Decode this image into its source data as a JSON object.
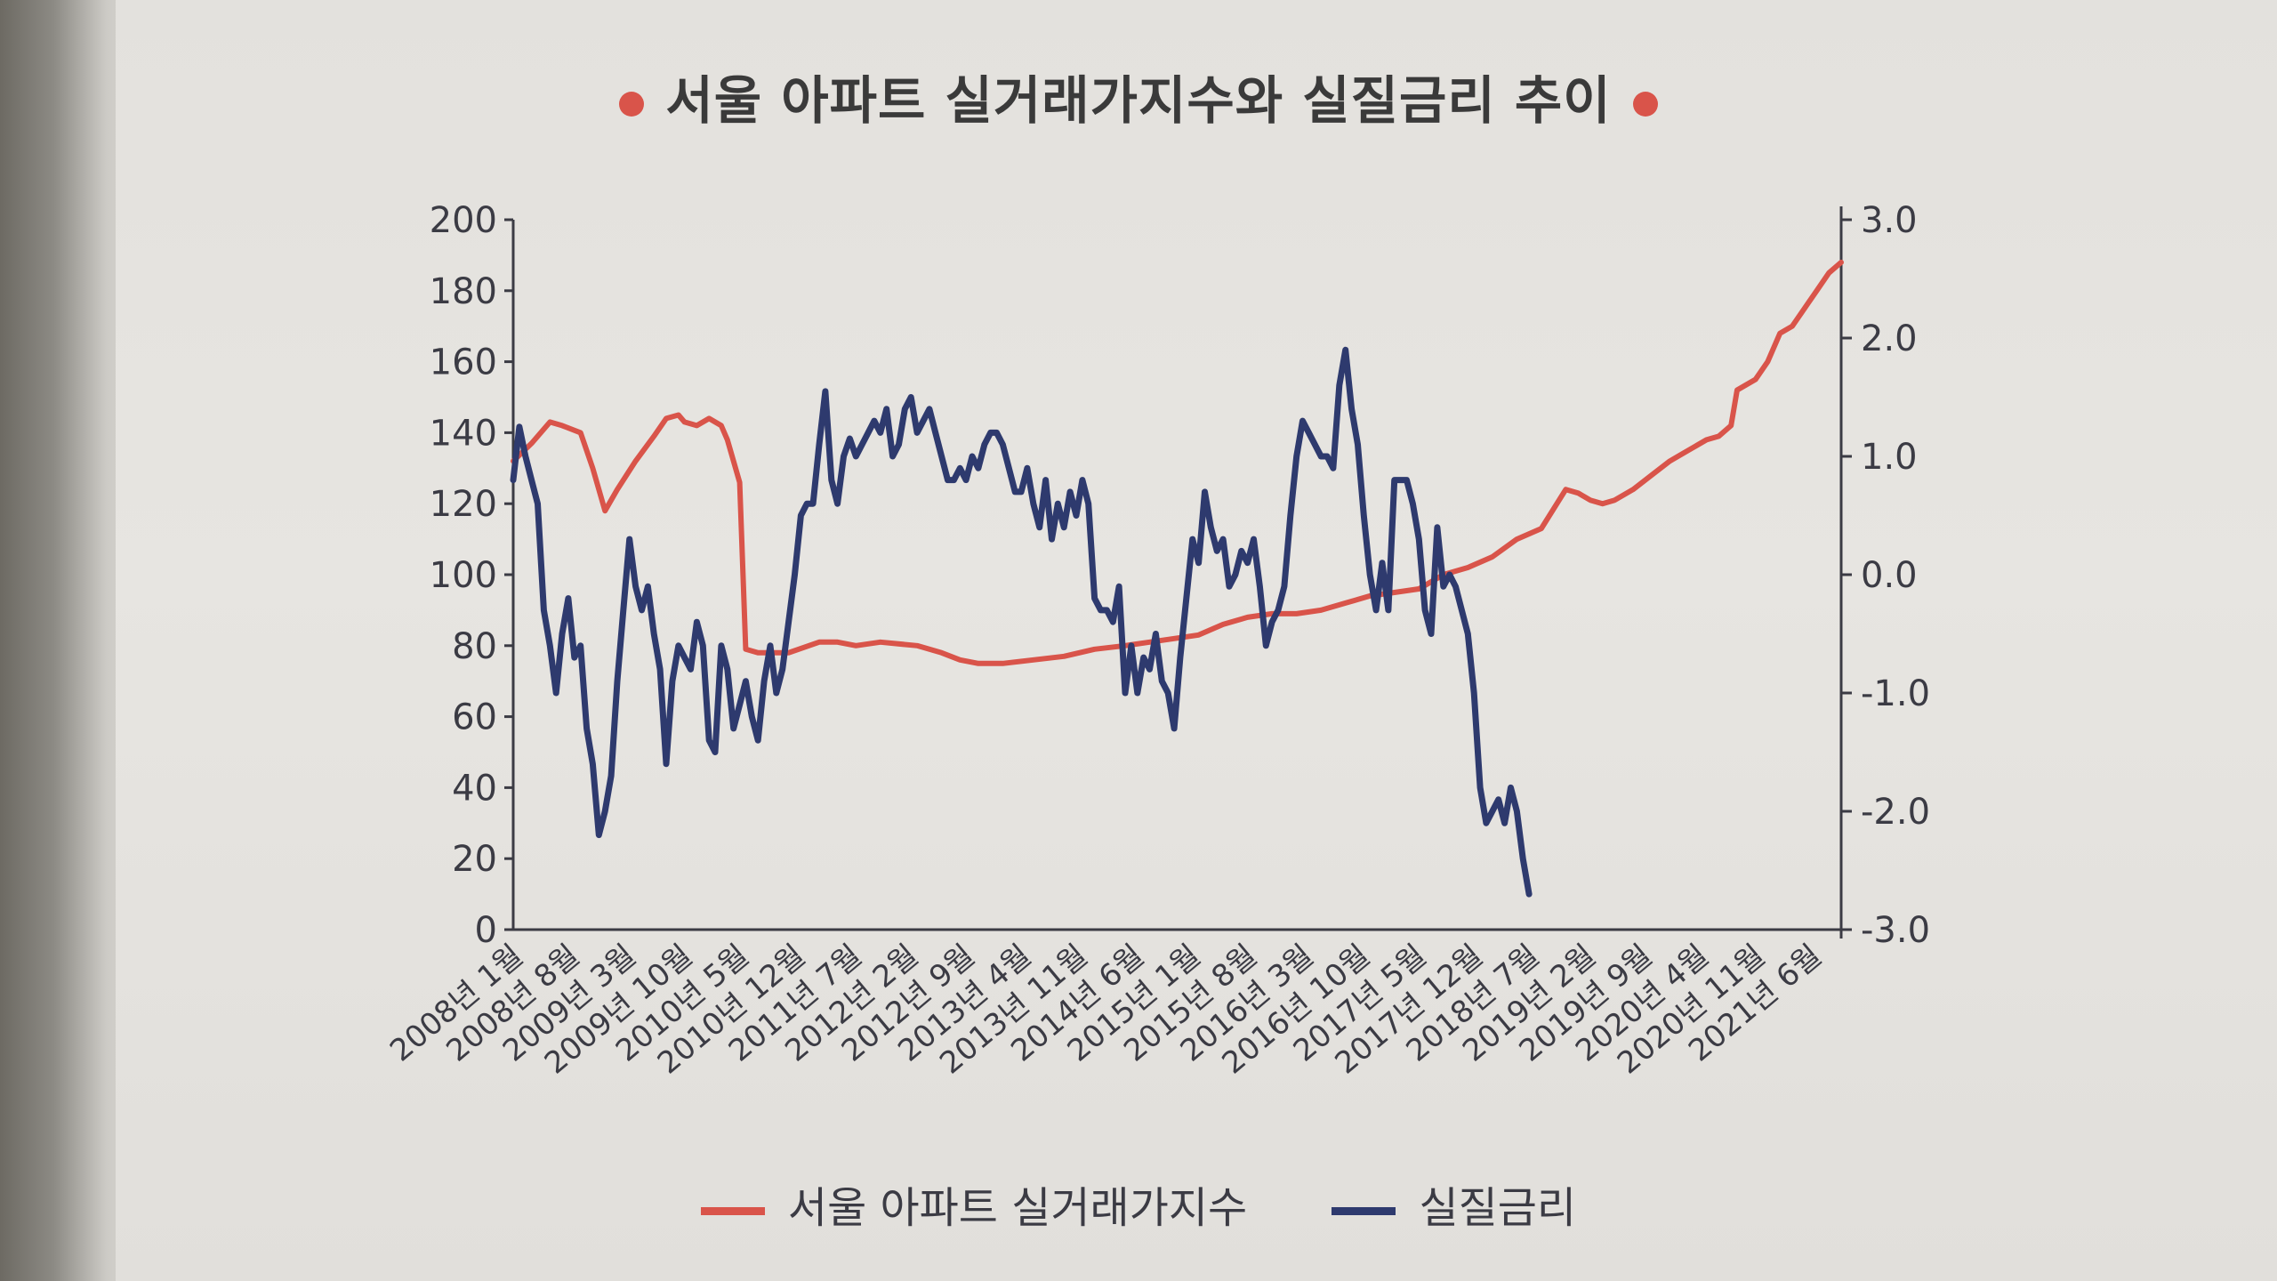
{
  "title": "서울 아파트 실거래가지수와 실질금리 추이",
  "colors": {
    "index": "#d9544a",
    "rate": "#2e3a6e",
    "title_dot": "#d9544a"
  },
  "legend": {
    "index_label": "서울 아파트 실거래가지수",
    "rate_label": "실질금리"
  },
  "chart_data": {
    "type": "line",
    "title": "서울 아파트 실거래가지수와 실질금리 추이",
    "x_labels": [
      "2008년 1월",
      "2008년 8월",
      "2009년 3월",
      "2009년 10월",
      "2010년 5월",
      "2010년 12월",
      "2011년 7월",
      "2012년 2월",
      "2012년 9월",
      "2013년 4월",
      "2013년 11월",
      "2014년 6월",
      "2015년 1월",
      "2015년 8월",
      "2016년 3월",
      "2016년 10월",
      "2017년 5월",
      "2017년 12월",
      "2018년 7월",
      "2019년 2월",
      "2019년 9월",
      "2020년 4월",
      "2020년 11월",
      "2021년 6월"
    ],
    "y_left": {
      "min": 0,
      "max": 200,
      "ticks": [
        "0",
        "20",
        "40",
        "60",
        "80",
        "100",
        "120",
        "140",
        "160",
        "180",
        "200"
      ]
    },
    "y_right": {
      "min": -3.0,
      "max": 3.0,
      "ticks": [
        "-3.0",
        "-2.0",
        "-1.0",
        "0.0",
        "1.0",
        "2.0",
        "3.0"
      ]
    },
    "series": [
      {
        "name": "서울 아파트 실거래가지수",
        "axis": "left",
        "points": [
          [
            0,
            132
          ],
          [
            3,
            137
          ],
          [
            6,
            143
          ],
          [
            8,
            142
          ],
          [
            11,
            140
          ],
          [
            13,
            130
          ],
          [
            15,
            118
          ],
          [
            17,
            124
          ],
          [
            20,
            132
          ],
          [
            23,
            139
          ],
          [
            25,
            144
          ],
          [
            27,
            145
          ],
          [
            28,
            143
          ],
          [
            30,
            142
          ],
          [
            32,
            144
          ],
          [
            34,
            142
          ],
          [
            35,
            138
          ],
          [
            37,
            126
          ],
          [
            38,
            79
          ],
          [
            40,
            78
          ],
          [
            45,
            78
          ],
          [
            50,
            81
          ],
          [
            53,
            81
          ],
          [
            56,
            80
          ],
          [
            60,
            81
          ],
          [
            66,
            80
          ],
          [
            70,
            78
          ],
          [
            73,
            76
          ],
          [
            76,
            75
          ],
          [
            80,
            75
          ],
          [
            85,
            76
          ],
          [
            90,
            77
          ],
          [
            95,
            79
          ],
          [
            100,
            80
          ],
          [
            104,
            81
          ],
          [
            108,
            82
          ],
          [
            112,
            83
          ],
          [
            116,
            86
          ],
          [
            120,
            88
          ],
          [
            124,
            89
          ],
          [
            128,
            89
          ],
          [
            132,
            90
          ],
          [
            136,
            92
          ],
          [
            140,
            94
          ],
          [
            144,
            95
          ],
          [
            148,
            96
          ],
          [
            152,
            100
          ],
          [
            156,
            102
          ],
          [
            160,
            105
          ],
          [
            164,
            110
          ],
          [
            168,
            113
          ],
          [
            172,
            124
          ],
          [
            174,
            123
          ],
          [
            176,
            121
          ],
          [
            178,
            120
          ],
          [
            180,
            121
          ],
          [
            183,
            124
          ],
          [
            186,
            128
          ],
          [
            189,
            132
          ],
          [
            192,
            135
          ],
          [
            195,
            138
          ],
          [
            197,
            139
          ],
          [
            199,
            142
          ],
          [
            200,
            152
          ],
          [
            203,
            155
          ],
          [
            205,
            160
          ],
          [
            207,
            168
          ],
          [
            209,
            170
          ],
          [
            211,
            175
          ],
          [
            213,
            180
          ],
          [
            215,
            185
          ],
          [
            217,
            188
          ]
        ]
      },
      {
        "name": "실질금리",
        "axis": "right",
        "points": [
          [
            0,
            0.8
          ],
          [
            1,
            1.25
          ],
          [
            2,
            1.0
          ],
          [
            3,
            0.8
          ],
          [
            4,
            0.6
          ],
          [
            5,
            -0.3
          ],
          [
            6,
            -0.6
          ],
          [
            7,
            -1.0
          ],
          [
            8,
            -0.5
          ],
          [
            9,
            -0.2
          ],
          [
            10,
            -0.7
          ],
          [
            11,
            -0.6
          ],
          [
            12,
            -1.3
          ],
          [
            13,
            -1.6
          ],
          [
            14,
            -2.2
          ],
          [
            15,
            -2.0
          ],
          [
            16,
            -1.7
          ],
          [
            17,
            -0.9
          ],
          [
            18,
            -0.3
          ],
          [
            19,
            0.3
          ],
          [
            20,
            -0.1
          ],
          [
            21,
            -0.3
          ],
          [
            22,
            -0.1
          ],
          [
            23,
            -0.5
          ],
          [
            24,
            -0.8
          ],
          [
            25,
            -1.6
          ],
          [
            26,
            -0.9
          ],
          [
            27,
            -0.6
          ],
          [
            28,
            -0.7
          ],
          [
            29,
            -0.8
          ],
          [
            30,
            -0.4
          ],
          [
            31,
            -0.6
          ],
          [
            32,
            -1.4
          ],
          [
            33,
            -1.5
          ],
          [
            34,
            -0.6
          ],
          [
            35,
            -0.8
          ],
          [
            36,
            -1.3
          ],
          [
            37,
            -1.1
          ],
          [
            38,
            -0.9
          ],
          [
            39,
            -1.2
          ],
          [
            40,
            -1.4
          ],
          [
            41,
            -0.9
          ],
          [
            42,
            -0.6
          ],
          [
            43,
            -1.0
          ],
          [
            44,
            -0.8
          ],
          [
            45,
            -0.4
          ],
          [
            46,
            0.0
          ],
          [
            47,
            0.5
          ],
          [
            48,
            0.6
          ],
          [
            49,
            0.6
          ],
          [
            50,
            1.1
          ],
          [
            51,
            1.55
          ],
          [
            52,
            0.8
          ],
          [
            53,
            0.6
          ],
          [
            54,
            1.0
          ],
          [
            55,
            1.15
          ],
          [
            56,
            1.0
          ],
          [
            57,
            1.1
          ],
          [
            58,
            1.2
          ],
          [
            59,
            1.3
          ],
          [
            60,
            1.2
          ],
          [
            61,
            1.4
          ],
          [
            62,
            1.0
          ],
          [
            63,
            1.1
          ],
          [
            64,
            1.4
          ],
          [
            65,
            1.5
          ],
          [
            66,
            1.2
          ],
          [
            67,
            1.3
          ],
          [
            68,
            1.4
          ],
          [
            69,
            1.2
          ],
          [
            70,
            1.0
          ],
          [
            71,
            0.8
          ],
          [
            72,
            0.8
          ],
          [
            73,
            0.9
          ],
          [
            74,
            0.8
          ],
          [
            75,
            1.0
          ],
          [
            76,
            0.9
          ],
          [
            77,
            1.1
          ],
          [
            78,
            1.2
          ],
          [
            79,
            1.2
          ],
          [
            80,
            1.1
          ],
          [
            81,
            0.9
          ],
          [
            82,
            0.7
          ],
          [
            83,
            0.7
          ],
          [
            84,
            0.9
          ],
          [
            85,
            0.6
          ],
          [
            86,
            0.4
          ],
          [
            87,
            0.8
          ],
          [
            88,
            0.3
          ],
          [
            89,
            0.6
          ],
          [
            90,
            0.4
          ],
          [
            91,
            0.7
          ],
          [
            92,
            0.5
          ],
          [
            93,
            0.8
          ],
          [
            94,
            0.6
          ],
          [
            95,
            -0.2
          ],
          [
            96,
            -0.3
          ],
          [
            97,
            -0.3
          ],
          [
            98,
            -0.4
          ],
          [
            99,
            -0.1
          ],
          [
            100,
            -1.0
          ],
          [
            101,
            -0.6
          ],
          [
            102,
            -1.0
          ],
          [
            103,
            -0.7
          ],
          [
            104,
            -0.8
          ],
          [
            105,
            -0.5
          ],
          [
            106,
            -0.9
          ],
          [
            107,
            -1.0
          ],
          [
            108,
            -1.3
          ],
          [
            109,
            -0.7
          ],
          [
            110,
            -0.2
          ],
          [
            111,
            0.3
          ],
          [
            112,
            0.1
          ],
          [
            113,
            0.7
          ],
          [
            114,
            0.4
          ],
          [
            115,
            0.2
          ],
          [
            116,
            0.3
          ],
          [
            117,
            -0.1
          ],
          [
            118,
            0.0
          ],
          [
            119,
            0.2
          ],
          [
            120,
            0.1
          ],
          [
            121,
            0.3
          ],
          [
            122,
            -0.1
          ],
          [
            123,
            -0.6
          ],
          [
            124,
            -0.4
          ],
          [
            125,
            -0.3
          ],
          [
            126,
            -0.1
          ],
          [
            127,
            0.5
          ],
          [
            128,
            1.0
          ],
          [
            129,
            1.3
          ],
          [
            130,
            1.2
          ],
          [
            131,
            1.1
          ],
          [
            132,
            1.0
          ],
          [
            133,
            1.0
          ],
          [
            134,
            0.9
          ],
          [
            135,
            1.6
          ],
          [
            136,
            1.9
          ],
          [
            137,
            1.4
          ],
          [
            138,
            1.1
          ],
          [
            139,
            0.5
          ],
          [
            140,
            0.0
          ],
          [
            141,
            -0.3
          ],
          [
            142,
            0.1
          ],
          [
            143,
            -0.3
          ],
          [
            144,
            0.8
          ],
          [
            145,
            0.8
          ],
          [
            146,
            0.8
          ],
          [
            147,
            0.6
          ],
          [
            148,
            0.3
          ],
          [
            149,
            -0.3
          ],
          [
            150,
            -0.5
          ],
          [
            151,
            0.4
          ],
          [
            152,
            -0.1
          ],
          [
            153,
            0.0
          ],
          [
            154,
            -0.1
          ],
          [
            155,
            -0.3
          ],
          [
            156,
            -0.5
          ],
          [
            157,
            -1.0
          ],
          [
            158,
            -1.8
          ],
          [
            159,
            -2.1
          ],
          [
            160,
            -2.0
          ],
          [
            161,
            -1.9
          ],
          [
            162,
            -2.1
          ],
          [
            163,
            -1.8
          ],
          [
            164,
            -2.0
          ],
          [
            165,
            -2.4
          ],
          [
            166,
            -2.7
          ]
        ]
      }
    ]
  }
}
